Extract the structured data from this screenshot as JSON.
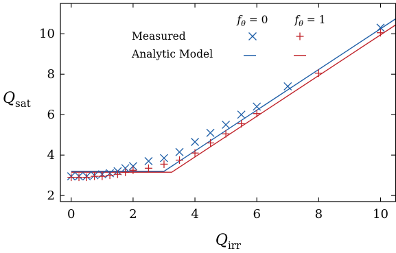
{
  "chart_data": {
    "type": "scatter",
    "title": "",
    "xlabel": {
      "main": "Q",
      "sub": "irr"
    },
    "ylabel": {
      "main": "Q",
      "sub": "sat"
    },
    "xlim": [
      -0.35,
      10.5
    ],
    "ylim": [
      1.7,
      11.5
    ],
    "xticks": [
      0,
      2,
      4,
      6,
      8,
      10
    ],
    "yticks": [
      2,
      4,
      6,
      8,
      10
    ],
    "grid": false,
    "legend": {
      "placement": "top-right",
      "column_headers": [
        "f_θ = 0",
        "f_θ = 1"
      ],
      "rows": [
        "Measured",
        "Analytic Model"
      ]
    },
    "colors": {
      "f0": "#1f5fa8",
      "f1": "#c0232a"
    },
    "series": [
      {
        "name": "Measured",
        "group": "f_θ = 0",
        "marker": "x",
        "x": [
          0,
          0.25,
          0.5,
          0.75,
          1,
          1.25,
          1.5,
          1.75,
          2,
          2.5,
          3,
          3.5,
          4,
          4.5,
          5,
          5.5,
          6,
          7,
          10
        ],
        "y": [
          2.95,
          2.95,
          2.95,
          3.0,
          3.05,
          3.1,
          3.2,
          3.35,
          3.45,
          3.7,
          3.85,
          4.15,
          4.65,
          5.1,
          5.5,
          6.0,
          6.4,
          7.4,
          10.3
        ]
      },
      {
        "name": "Measured",
        "group": "f_θ = 1",
        "marker": "+",
        "x": [
          0,
          0.25,
          0.5,
          0.75,
          1,
          1.25,
          1.5,
          1.75,
          2,
          2.5,
          3,
          3.5,
          4,
          4.5,
          5,
          5.5,
          6,
          8,
          10
        ],
        "y": [
          2.9,
          2.9,
          2.9,
          2.95,
          2.95,
          3.0,
          3.05,
          3.15,
          3.25,
          3.35,
          3.55,
          3.75,
          4.1,
          4.6,
          5.05,
          5.55,
          6.05,
          8.05,
          10.05
        ]
      },
      {
        "name": "Analytic Model",
        "group": "f_θ = 0",
        "marker": "line",
        "x": [
          0,
          3.0,
          10.5
        ],
        "y": [
          3.2,
          3.2,
          10.75
        ]
      },
      {
        "name": "Analytic Model",
        "group": "f_θ = 1",
        "marker": "line",
        "x": [
          0,
          3.25,
          10.5
        ],
        "y": [
          3.15,
          3.15,
          10.45
        ]
      }
    ]
  }
}
